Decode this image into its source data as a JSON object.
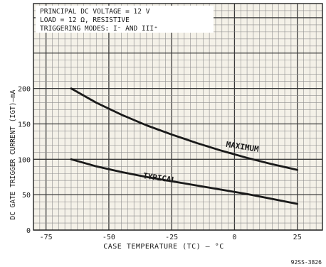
{
  "chart_data": {
    "type": "line",
    "ylabel": "DC GATE TRIGGER CURRENT (IGT)—mA",
    "xlabel": "CASE TEMPERATURE (TC) — °C",
    "conditions": [
      "PRINCIPAL DC VOLTAGE = 12 V",
      "LOAD = 12 Ω, RESISTIVE",
      "TRIGGERING MODES: I⁻ AND III⁺"
    ],
    "figure_number": "92SS-3826",
    "xlim": [
      -80,
      35
    ],
    "ylim": [
      0,
      320
    ],
    "x_ticks": [
      -75,
      -50,
      -25,
      0,
      25
    ],
    "x_tick_labels": [
      "-75",
      "-50",
      "-25",
      "0",
      "25"
    ],
    "y_ticks": [
      0,
      50,
      100,
      150,
      200
    ],
    "y_tick_labels": [
      "0",
      "50",
      "100",
      "150",
      "200"
    ],
    "grid": true,
    "series": [
      {
        "name": "MAXIMUM",
        "color": "#1a1a1a",
        "x": [
          -65,
          -55,
          -45,
          -35,
          -25,
          -15,
          -5,
          5,
          15,
          25
        ],
        "y": [
          200,
          180,
          163,
          148,
          135,
          123,
          112,
          102,
          93,
          85
        ]
      },
      {
        "name": "TYPICAL",
        "color": "#1a1a1a",
        "x": [
          -65,
          -55,
          -45,
          -35,
          -25,
          -15,
          -5,
          5,
          15,
          25
        ],
        "y": [
          100,
          90,
          82,
          75,
          69,
          63,
          57,
          51,
          44,
          37
        ]
      }
    ]
  }
}
